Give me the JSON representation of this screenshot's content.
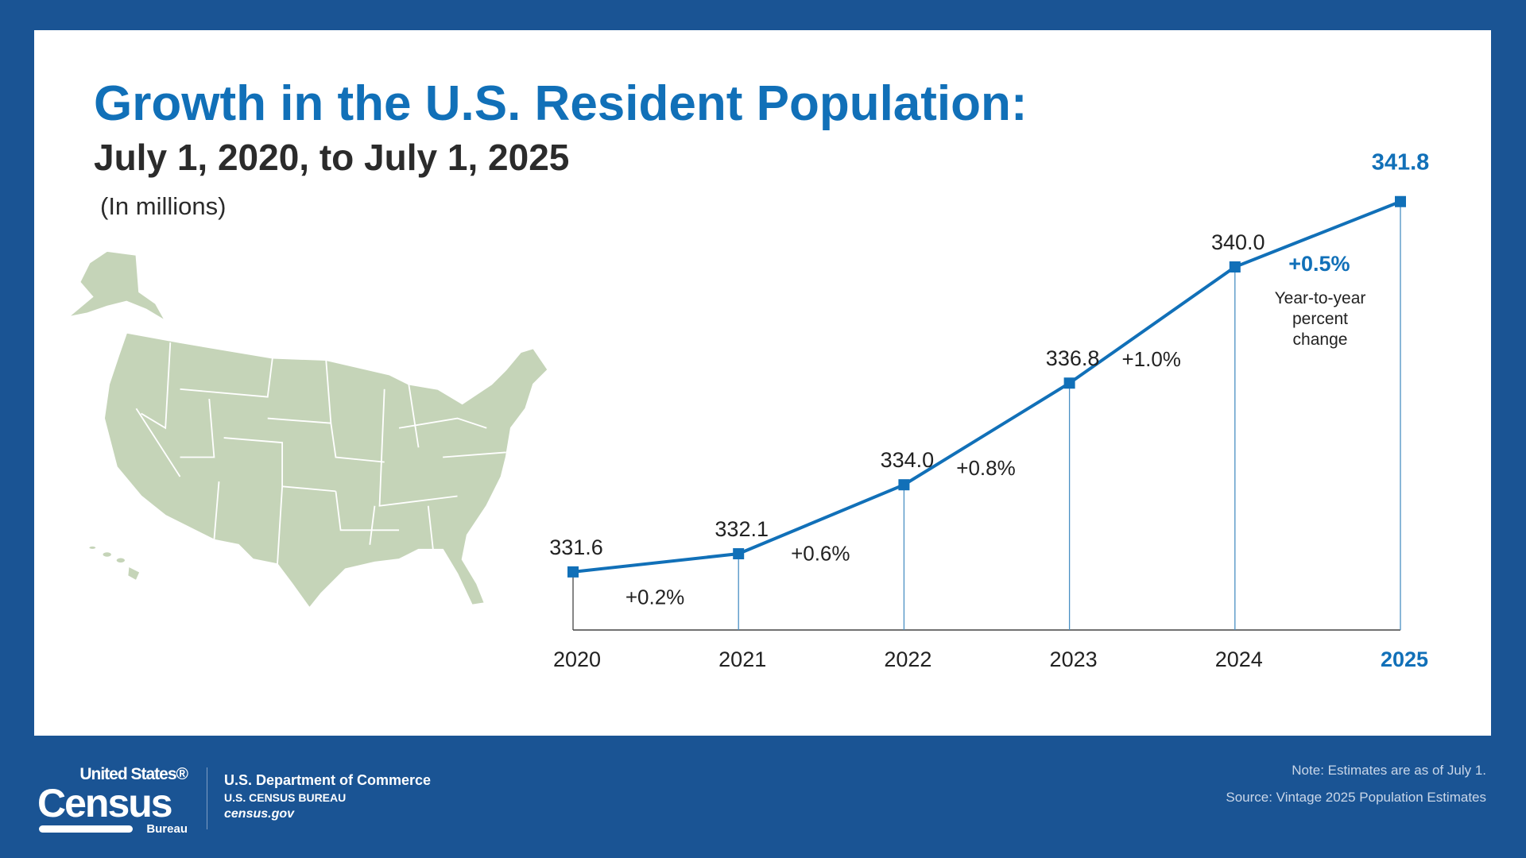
{
  "header": {
    "title": "Growth in the U.S. Resident Population:",
    "subtitle": "July 1, 2020, to July 1, 2025",
    "units": "(In millions)"
  },
  "colors": {
    "frame": "#1a5494",
    "accent": "#1170b8",
    "map": "#c5d4b8",
    "text": "#222222"
  },
  "chart_data": {
    "type": "line",
    "title": "Growth in the U.S. Resident Population: July 1, 2020, to July 1, 2025",
    "ylabel": "(In millions)",
    "categories": [
      "2020",
      "2021",
      "2022",
      "2023",
      "2024",
      "2025"
    ],
    "values": [
      331.6,
      332.1,
      334.0,
      336.8,
      340.0,
      341.8
    ],
    "value_labels": [
      "331.6",
      "332.1",
      "334.0",
      "336.8",
      "340.0",
      "341.8"
    ],
    "changes": [
      "+0.2%",
      "+0.6%",
      "+0.8%",
      "+1.0%",
      "+0.5%"
    ],
    "change_note": [
      "Year-to-year",
      "percent",
      "change"
    ],
    "ylim": [
      330,
      342
    ],
    "grid": false,
    "highlight": "2025"
  },
  "footer": {
    "logo": {
      "line1": "United States®",
      "line2": "Census",
      "line3": "Bureau"
    },
    "dept": "U.S. Department of Commerce",
    "bureau": "U.S. CENSUS BUREAU",
    "site": "census.gov",
    "note": "Note: Estimates are as of July 1.",
    "source": "Source: Vintage 2025 Population Estimates"
  }
}
